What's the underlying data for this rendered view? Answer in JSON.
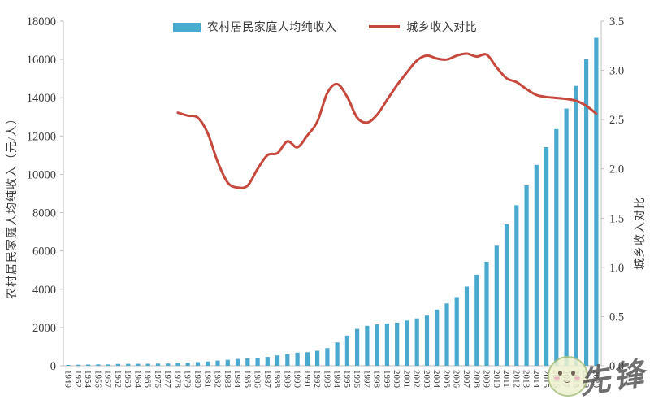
{
  "legend": {
    "bar_label": "农村居民家庭人均纯收入",
    "line_label": "城乡收入对比"
  },
  "colors": {
    "bar": "#4aa9cf",
    "line": "#c6473c",
    "axis": "#bfbfbf",
    "tick_text": "#3a3a3a"
  },
  "watermark": {
    "text": "先锋"
  },
  "chart_data": {
    "type": "bar",
    "title": "",
    "categories": [
      "1949",
      "1952",
      "1954",
      "1956",
      "1957",
      "1962",
      "1963",
      "1964",
      "1965",
      "1976",
      "1977",
      "1978",
      "1979",
      "1980",
      "1981",
      "1982",
      "1983",
      "1984",
      "1985",
      "1986",
      "1987",
      "1988",
      "1989",
      "1990",
      "1991",
      "1992",
      "1993",
      "1994",
      "1995",
      "1996",
      "1997",
      "1998",
      "1999",
      "2000",
      "2001",
      "2002",
      "2003",
      "2004",
      "2005",
      "2006",
      "2007",
      "2008",
      "2009",
      "2010",
      "2011",
      "2012",
      "2013",
      "2014",
      "2015",
      "2016",
      "2017",
      "2018",
      "2019",
      "2020"
    ],
    "series": [
      {
        "name": "农村居民家庭人均纯收入",
        "type": "bar",
        "axis": "left",
        "values": [
          44,
          57,
          64,
          73,
          73,
          99,
          102,
          102,
          107,
          113,
          117,
          133.6,
          160.2,
          191.3,
          223.4,
          270.1,
          309.8,
          355.3,
          397.6,
          423.8,
          462.6,
          544.9,
          601.5,
          686.3,
          708.6,
          784,
          921.6,
          1221,
          1577.7,
          1926.1,
          2090.1,
          2162,
          2210.3,
          2253.4,
          2366.4,
          2475.6,
          2622.2,
          2936.4,
          3254.9,
          3587,
          4140.4,
          4760.6,
          5435.1,
          6272.4,
          7393.9,
          8389.3,
          9429.6,
          10488.9,
          11421.7,
          12363.4,
          13432.4,
          14617,
          16020.7,
          17131.5
        ]
      },
      {
        "name": "城乡收入对比",
        "type": "line",
        "axis": "right",
        "values": [
          null,
          null,
          null,
          null,
          null,
          null,
          null,
          null,
          null,
          null,
          null,
          2.57,
          2.54,
          2.52,
          2.36,
          2.07,
          1.86,
          1.81,
          1.83,
          2.0,
          2.14,
          2.16,
          2.28,
          2.22,
          2.34,
          2.48,
          2.77,
          2.86,
          2.73,
          2.52,
          2.47,
          2.55,
          2.7,
          2.85,
          2.98,
          3.1,
          3.15,
          3.12,
          3.11,
          3.15,
          3.17,
          3.14,
          3.16,
          3.03,
          2.92,
          2.88,
          2.81,
          2.75,
          2.73,
          2.72,
          2.71,
          2.69,
          2.64,
          2.56
        ]
      }
    ],
    "left_axis": {
      "label": "农村居民家庭人均纯收入（元/人）",
      "min": 0,
      "max": 18000,
      "step": 2000
    },
    "right_axis": {
      "label": "城乡收入对比",
      "min": 0,
      "max": 3.5,
      "step": 0.5,
      "decimals": 1
    },
    "grid": false,
    "legend_position": "top"
  }
}
